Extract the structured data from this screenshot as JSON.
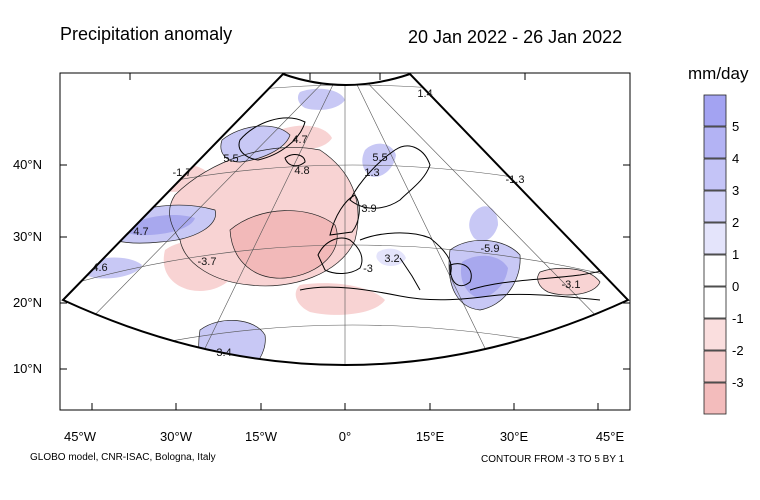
{
  "header": {
    "title": "Precipitation anomaly",
    "period": "20 Jan 2022 - 26 Jan 2022"
  },
  "footer": {
    "credit": "GLOBO model, CNR-ISAC, Bologna, Italy",
    "contour_note": "CONTOUR FROM -3 TO 5 BY 1"
  },
  "legend": {
    "unit": "mm/day",
    "levels": [
      {
        "label": "5",
        "color": "#a3a3f2"
      },
      {
        "label": "4",
        "color": "#b3b3f4"
      },
      {
        "label": "3",
        "color": "#c4c4f7"
      },
      {
        "label": "2",
        "color": "#d3d3f9"
      },
      {
        "label": "1",
        "color": "#e4e4fb"
      },
      {
        "label": "0",
        "color": "#ffffff"
      },
      {
        "label": "-1",
        "color": "#ffffff"
      },
      {
        "label": "-2",
        "color": "#fadede"
      },
      {
        "label": "-3",
        "color": "#f6cdcd"
      },
      {
        "label": "",
        "color": "#f3bcbc"
      }
    ]
  },
  "axes": {
    "lat_labels": [
      "40°N",
      "30°N",
      "20°N",
      "10°N"
    ],
    "lon_labels": [
      "45°W",
      "30°W",
      "15°W",
      "0°",
      "15°E",
      "30°E",
      "45°E"
    ]
  },
  "contour_labels": [
    "1.4",
    "5.5",
    "4.7",
    "5.5",
    "-1.7",
    "4.8",
    "1.3",
    "-1.3",
    "4.7",
    "3.9",
    "4.6",
    "-3.7",
    "-3",
    "3.2",
    "-5.9",
    "-3.1",
    "3.4"
  ],
  "colors": {
    "positive": "#c8c8f5",
    "positive_strong": "#a8a8ee",
    "negative": "#f8d3d3",
    "negative_strong": "#f2b9b9",
    "coast": "#000000"
  }
}
